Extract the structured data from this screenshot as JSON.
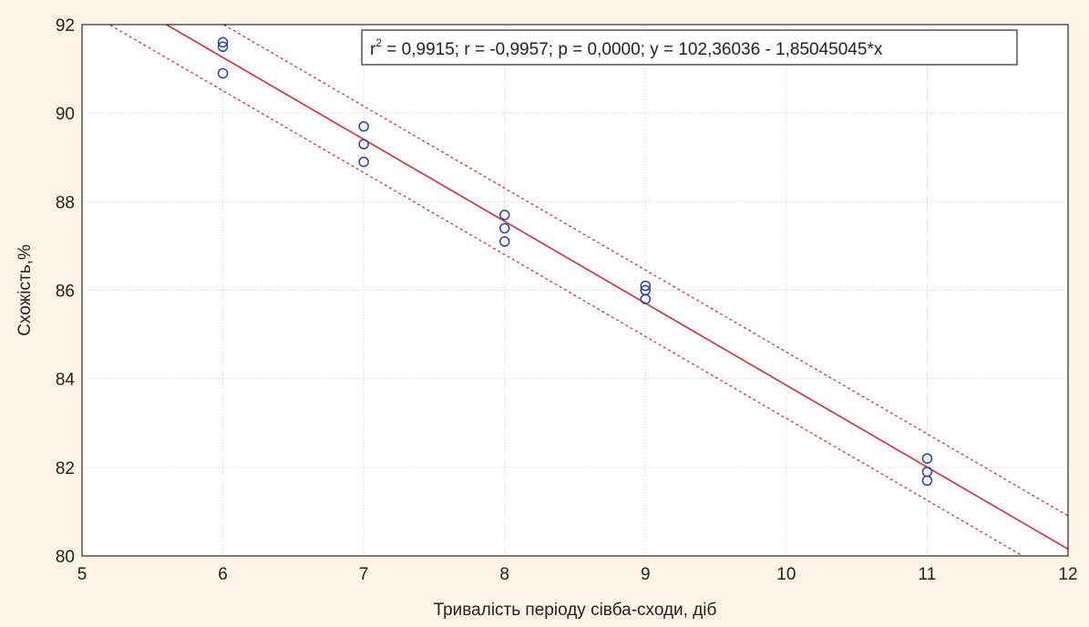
{
  "chart_data": {
    "type": "scatter",
    "xlabel": "Тривалість періоду сівба-сходи, діб",
    "ylabel": "Схожість,%",
    "xlim": [
      5,
      12
    ],
    "ylim": [
      80,
      92
    ],
    "x_ticks": [
      5,
      6,
      7,
      8,
      9,
      10,
      11,
      12
    ],
    "y_ticks": [
      80,
      82,
      84,
      86,
      88,
      90,
      92
    ],
    "grid": true,
    "points": [
      {
        "x": 6,
        "y": 91.6
      },
      {
        "x": 6,
        "y": 91.5
      },
      {
        "x": 6,
        "y": 90.9
      },
      {
        "x": 7,
        "y": 89.7
      },
      {
        "x": 7,
        "y": 89.3
      },
      {
        "x": 7,
        "y": 88.9
      },
      {
        "x": 8,
        "y": 87.7
      },
      {
        "x": 8,
        "y": 87.4
      },
      {
        "x": 8,
        "y": 87.1
      },
      {
        "x": 9,
        "y": 86.1
      },
      {
        "x": 9,
        "y": 86.0
      },
      {
        "x": 9,
        "y": 85.8
      },
      {
        "x": 11,
        "y": 82.2
      },
      {
        "x": 11,
        "y": 81.9
      },
      {
        "x": 11,
        "y": 81.7
      }
    ],
    "regression": {
      "intercept": 102.36036,
      "slope": -1.85045045
    },
    "confidence_band_offset": 0.75,
    "annotation": {
      "r2_prefix": "r",
      "r2_sup": "2",
      "rest": " = 0,9915;  r = -0,9957; p = 0,0000;  y = 102,36036 - 1,85045045*x"
    },
    "colors": {
      "background": "#fdf3e6",
      "plot_area": "#ffffff",
      "grid": "#cfcfcf",
      "marker": "#2a3f9e",
      "fit_line": "#d6202a"
    }
  }
}
